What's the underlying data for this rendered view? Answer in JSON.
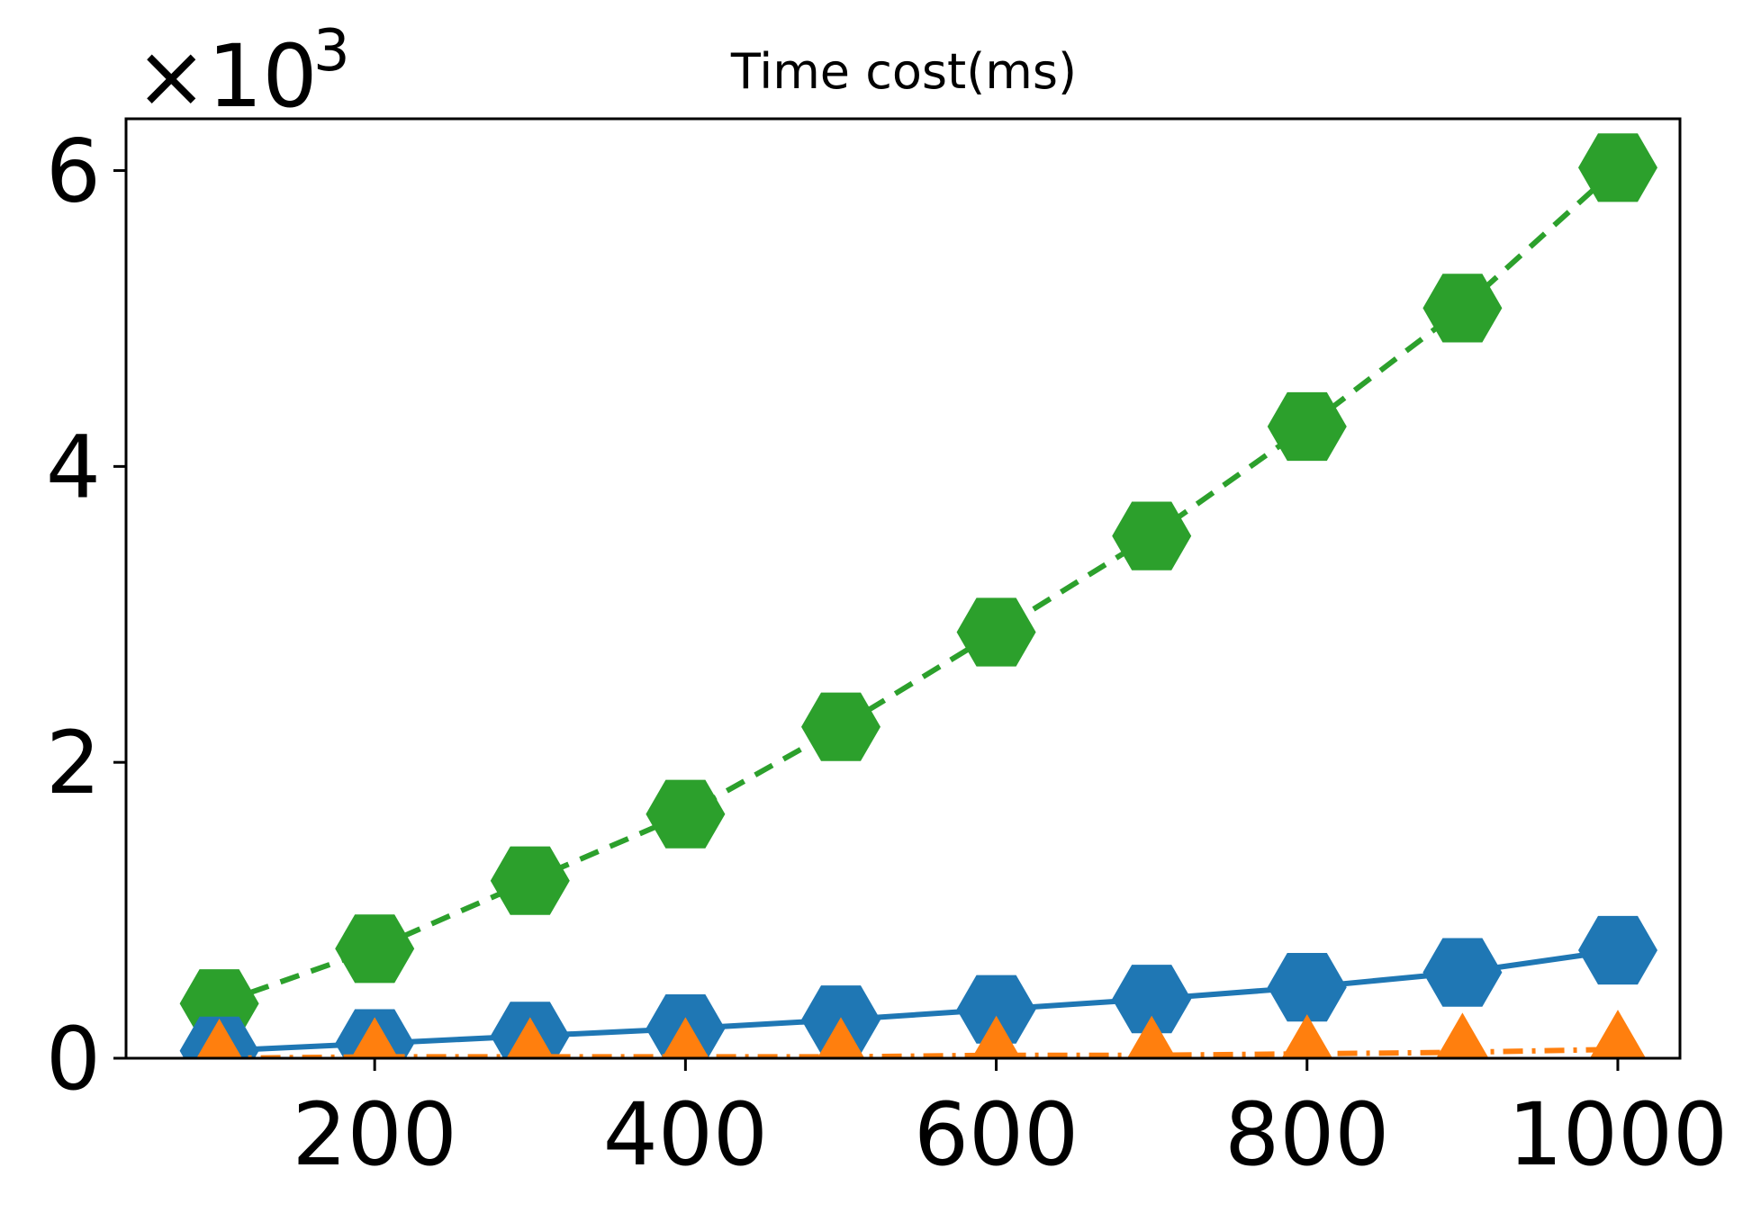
{
  "chart_data": {
    "type": "line",
    "title": "Time cost(ms)",
    "xlabel": "",
    "ylabel": "",
    "x": [
      100,
      200,
      300,
      400,
      500,
      600,
      700,
      800,
      900,
      1000
    ],
    "xlim": [
      40,
      1040
    ],
    "ylim": [
      0,
      6.35
    ],
    "x_ticks": [
      200,
      400,
      600,
      800,
      1000
    ],
    "x_tick_labels": [
      "200",
      "400",
      "600",
      "800",
      "1000"
    ],
    "y_ticks": [
      0,
      2,
      4,
      6
    ],
    "y_tick_labels": [
      "0",
      "2",
      "4",
      "6"
    ],
    "y_offset_label": {
      "base": "×10",
      "exponent": "3"
    },
    "grid": false,
    "series": [
      {
        "color": "#1f77b4",
        "line_style": "solid",
        "marker": "hexagon",
        "values": [
          0.05,
          0.1,
          0.15,
          0.2,
          0.26,
          0.33,
          0.4,
          0.48,
          0.58,
          0.73
        ]
      },
      {
        "color": "#ff7f0e",
        "line_style": "dashdot",
        "marker": "triangle-up",
        "values": [
          0.0,
          0.01,
          0.01,
          0.01,
          0.01,
          0.02,
          0.02,
          0.03,
          0.04,
          0.06
        ]
      },
      {
        "color": "#2ca02c",
        "line_style": "dashed",
        "marker": "hexagon",
        "values": [
          0.37,
          0.74,
          1.2,
          1.65,
          2.24,
          2.88,
          3.53,
          4.27,
          5.07,
          6.02
        ]
      }
    ]
  }
}
